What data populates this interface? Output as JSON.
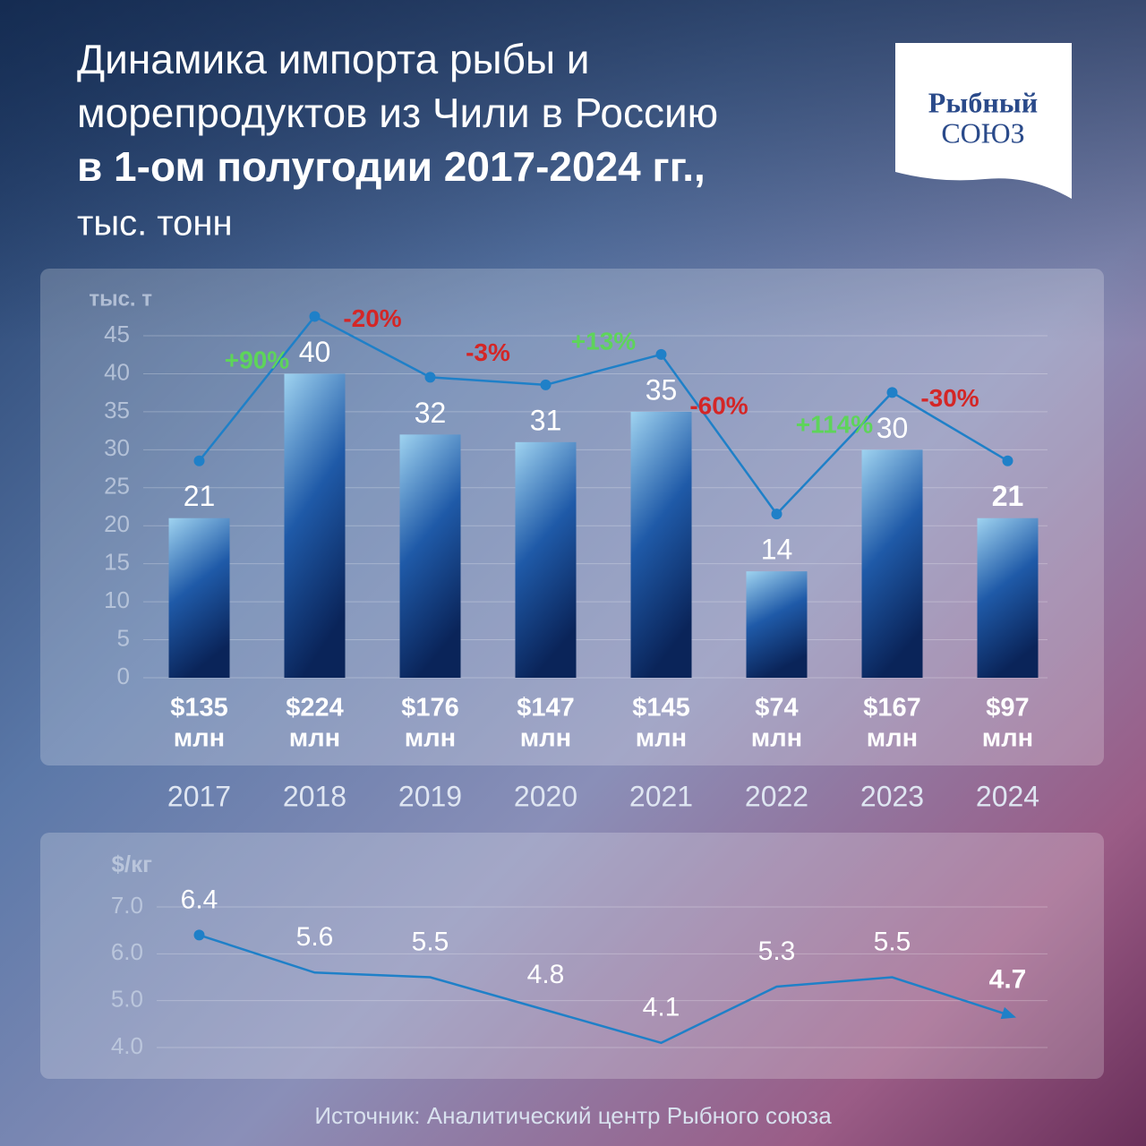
{
  "header": {
    "title_lines": [
      "Динамика импорта рыбы и",
      "морепродуктов из Чили в Россию"
    ],
    "title_bold": "в 1-ом полугодии 2017-2024 гг.,",
    "subtitle": "тыс. тонн"
  },
  "logo": {
    "line1": "Рыбный",
    "line2": "СОЮЗ"
  },
  "chart_data": [
    {
      "type": "bar",
      "ylabel": "тыс. т",
      "categories": [
        "2017",
        "2018",
        "2019",
        "2020",
        "2021",
        "2022",
        "2023",
        "2024"
      ],
      "values": [
        21,
        40,
        32,
        31,
        35,
        14,
        30,
        21
      ],
      "gradient": [
        "#9fd3f0",
        "#0a2459"
      ],
      "ylim": [
        0,
        45
      ],
      "yticks": [
        0,
        5,
        10,
        15,
        20,
        25,
        30,
        35,
        40,
        45
      ],
      "grid": true,
      "highlight_last": true,
      "line_color": "#1f80c8",
      "changes": {
        "values": [
          90,
          -20,
          -3,
          13,
          -60,
          114,
          -30
        ],
        "value_labels": [
          "+90%",
          "-20%",
          "-3%",
          "+13%",
          "-60%",
          "+114%",
          "-30%"
        ],
        "positive_color": "#5ed45a",
        "negative_color": "#d42626"
      },
      "costs": {
        "values": [
          135,
          224,
          176,
          147,
          145,
          74,
          167,
          97
        ],
        "value_labels": [
          "$135",
          "$224",
          "$176",
          "$147",
          "$145",
          "$74",
          "$167",
          "$97"
        ],
        "unit": "млн"
      }
    },
    {
      "type": "line",
      "ylabel": "$/кг",
      "values": [
        6.4,
        5.6,
        5.5,
        4.8,
        4.1,
        5.3,
        5.5,
        4.7
      ],
      "color": "#1f80c8",
      "ylim": [
        3.8,
        7.5
      ],
      "yticks": [
        {
          "value": 4,
          "label": "4.0"
        },
        {
          "value": 5,
          "label": "5.0"
        },
        {
          "value": 6,
          "label": "6.0"
        },
        {
          "value": 7,
          "label": "7.0"
        }
      ],
      "grid": true,
      "highlight_last": true
    }
  ],
  "source": "Источник: Аналитический центр Рыбного союза"
}
